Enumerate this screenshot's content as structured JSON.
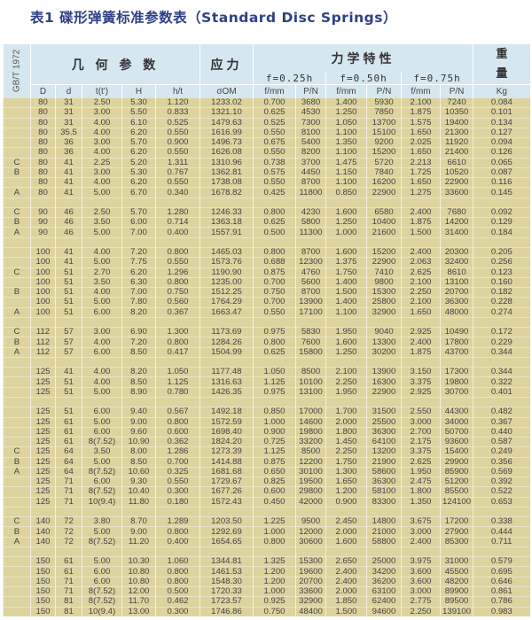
{
  "title": "表1 碟形弹簧标准参数表（Standard Disc Springs）",
  "header": {
    "standard": "GB/T 1972",
    "geometry": "几 何 参 数",
    "stress": "应力",
    "mechanics": "力学特性",
    "weight_top": "重",
    "weight_bottom": "量",
    "f025": "f=0.25h",
    "f050": "f=0.50h",
    "f075": "f=0.75h",
    "columns": [
      "",
      "D",
      "d",
      "t(t')",
      "H",
      "h/t",
      "σOM",
      "f/mm",
      "P/N",
      "f/mm",
      "P/N",
      "f/mm",
      "P/N",
      "Kg"
    ]
  },
  "colors": {
    "header_bg": "#d5e7ef",
    "body_bg": "#ddd39f",
    "title": "#2f3f86"
  },
  "rows": [
    [
      "",
      "80",
      "31",
      "2.50",
      "5.30",
      "1.120",
      "1233.02",
      "0.700",
      "3680",
      "1.400",
      "5930",
      "2.100",
      "7240",
      "0.084"
    ],
    [
      "",
      "80",
      "31",
      "3.00",
      "5.50",
      "0.833",
      "1321.10",
      "0.625",
      "4530",
      "1.250",
      "7850",
      "1.875",
      "10350",
      "0.101"
    ],
    [
      "",
      "80",
      "31",
      "4.00",
      "6.10",
      "0.525",
      "1479.63",
      "0.525",
      "7300",
      "1.050",
      "13700",
      "1.575",
      "19400",
      "0.134"
    ],
    [
      "",
      "80",
      "35.5",
      "4.00",
      "6.20",
      "0.550",
      "1616.99",
      "0.550",
      "8100",
      "1.100",
      "15100",
      "1.650",
      "21300",
      "0.127"
    ],
    [
      "",
      "80",
      "36",
      "3.00",
      "5.70",
      "0.900",
      "1496.73",
      "0.675",
      "5400",
      "1.350",
      "9200",
      "2.025",
      "11920",
      "0.094"
    ],
    [
      "",
      "80",
      "36",
      "4.00",
      "6.20",
      "0.550",
      "1626.08",
      "0.550",
      "8200",
      "1.100",
      "15200",
      "1.650",
      "21400",
      "0.126"
    ],
    [
      "C",
      "80",
      "41",
      "2.25",
      "5.20",
      "1.311",
      "1310.96",
      "0.738",
      "3700",
      "1.475",
      "5720",
      "2.213",
      "6610",
      "0.065"
    ],
    [
      "B",
      "80",
      "41",
      "3.00",
      "5.30",
      "0.767",
      "1362.81",
      "0.575",
      "4450",
      "1.150",
      "7840",
      "1.725",
      "10520",
      "0.087"
    ],
    [
      "",
      "80",
      "41",
      "4.00",
      "6.20",
      "0.550",
      "1738.08",
      "0.550",
      "8700",
      "1.100",
      "16200",
      "1.650",
      "22900",
      "0.116"
    ],
    [
      "A",
      "80",
      "41",
      "5.00",
      "6.70",
      "0.340",
      "1678.82",
      "0.425",
      "11800",
      "0.850",
      "22900",
      "1.275",
      "33600",
      "0.145"
    ],
    [],
    [
      "C",
      "90",
      "46",
      "2.50",
      "5.70",
      "1.280",
      "1246.33",
      "0.800",
      "4230",
      "1.600",
      "6580",
      "2.400",
      "7680",
      "0.092"
    ],
    [
      "B",
      "90",
      "46",
      "3.50",
      "6.00",
      "0.714",
      "1363.18",
      "0.625",
      "5800",
      "1.250",
      "10400",
      "1.875",
      "14200",
      "0.129"
    ],
    [
      "A",
      "90",
      "46",
      "5.00",
      "7.00",
      "0.400",
      "1557.91",
      "0.500",
      "11300",
      "1.000",
      "21600",
      "1.500",
      "31400",
      "0.184"
    ],
    [],
    [
      "",
      "100",
      "41",
      "4.00",
      "7.20",
      "0.800",
      "1465.03",
      "0.800",
      "8700",
      "1.600",
      "15200",
      "2.400",
      "20300",
      "0.205"
    ],
    [
      "",
      "100",
      "41",
      "5.00",
      "7.75",
      "0.550",
      "1573.76",
      "0.688",
      "12300",
      "1.375",
      "22900",
      "2.063",
      "32400",
      "0.256"
    ],
    [
      "C",
      "100",
      "51",
      "2.70",
      "6.20",
      "1.296",
      "1190.90",
      "0.875",
      "4760",
      "1.750",
      "7410",
      "2.625",
      "8610",
      "0.123"
    ],
    [
      "",
      "100",
      "51",
      "3.50",
      "6.30",
      "0.800",
      "1235.00",
      "0.700",
      "5600",
      "1.400",
      "9800",
      "2.100",
      "13100",
      "0.160"
    ],
    [
      "B",
      "100",
      "51",
      "4.00",
      "7.00",
      "0.750",
      "1512.25",
      "0.750",
      "8700",
      "1.500",
      "15300",
      "2.250",
      "20700",
      "0.182"
    ],
    [
      "",
      "100",
      "51",
      "5.00",
      "7.80",
      "0.560",
      "1764.29",
      "0.700",
      "13900",
      "1.400",
      "25800",
      "2.100",
      "36300",
      "0.228"
    ],
    [
      "A",
      "100",
      "51",
      "6.00",
      "8.20",
      "0.367",
      "1663.47",
      "0.550",
      "17100",
      "1.100",
      "32900",
      "1.650",
      "48000",
      "0.274"
    ],
    [],
    [
      "C",
      "112",
      "57",
      "3.00",
      "6.90",
      "1.300",
      "1173.69",
      "0.975",
      "5830",
      "1.950",
      "9040",
      "2.925",
      "10490",
      "0.172"
    ],
    [
      "B",
      "112",
      "57",
      "4.00",
      "7.20",
      "0.800",
      "1284.26",
      "0.800",
      "7600",
      "1.600",
      "13300",
      "2.400",
      "17800",
      "0.229"
    ],
    [
      "A",
      "112",
      "57",
      "6.00",
      "8.50",
      "0.417",
      "1504.99",
      "0.625",
      "15800",
      "1.250",
      "30200",
      "1.875",
      "43700",
      "0.344"
    ],
    [],
    [
      "",
      "125",
      "41",
      "4.00",
      "8.20",
      "1.050",
      "1177.48",
      "1.050",
      "8500",
      "2.100",
      "13900",
      "3.150",
      "17300",
      "0.344"
    ],
    [
      "",
      "125",
      "51",
      "4.00",
      "8.50",
      "1.125",
      "1316.63",
      "1.125",
      "10100",
      "2.250",
      "16300",
      "3.375",
      "19800",
      "0.322"
    ],
    [
      "",
      "125",
      "51",
      "5.00",
      "8.90",
      "0.780",
      "1426.35",
      "0.975",
      "13100",
      "1.950",
      "22900",
      "2.925",
      "30700",
      "0.401"
    ],
    [],
    [
      "",
      "125",
      "51",
      "6.00",
      "9.40",
      "0.567",
      "1492.18",
      "0.850",
      "17000",
      "1.700",
      "31500",
      "2.550",
      "44300",
      "0.482"
    ],
    [
      "",
      "125",
      "61",
      "5.00",
      "9.00",
      "0.800",
      "1572.59",
      "1.000",
      "14600",
      "2.000",
      "25500",
      "3.000",
      "34000",
      "0.367"
    ],
    [
      "",
      "125",
      "61",
      "6.00",
      "9.60",
      "0.600",
      "1698.40",
      "0.900",
      "19800",
      "1.800",
      "36300",
      "2.700",
      "50700",
      "0.440"
    ],
    [
      "",
      "125",
      "61",
      "8(7.52)",
      "10.90",
      "0.362",
      "1824.20",
      "0.725",
      "33200",
      "1.450",
      "64100",
      "2.175",
      "93600",
      "0.587"
    ],
    [
      "C",
      "125",
      "64",
      "3.50",
      "8.00",
      "1.286",
      "1273.39",
      "1.125",
      "8500",
      "2.250",
      "13200",
      "3.375",
      "15400",
      "0.249"
    ],
    [
      "B",
      "125",
      "64",
      "5.00",
      "8.50",
      "0.700",
      "1414.88",
      "0.875",
      "12200",
      "1.750",
      "21900",
      "2.625",
      "29900",
      "0.356"
    ],
    [
      "A",
      "125",
      "64",
      "8(7.52)",
      "10.60",
      "0.325",
      "1681.68",
      "0.650",
      "30100",
      "1.300",
      "58600",
      "1.950",
      "85900",
      "0.569"
    ],
    [
      "",
      "125",
      "71",
      "6.00",
      "9.30",
      "0.550",
      "1729.67",
      "0.825",
      "19500",
      "1.650",
      "36300",
      "2.475",
      "51200",
      "0.392"
    ],
    [
      "",
      "125",
      "71",
      "8(7.52)",
      "10.40",
      "0.300",
      "1677.26",
      "0.600",
      "29800",
      "1.200",
      "58100",
      "1.800",
      "85500",
      "0.522"
    ],
    [
      "",
      "125",
      "71",
      "10(9.4)",
      "11.80",
      "0.180",
      "1572.43",
      "0.450",
      "42000",
      "0.900",
      "83300",
      "1.350",
      "124100",
      "0.653"
    ],
    [],
    [
      "C",
      "140",
      "72",
      "3.80",
      "8.70",
      "1.289",
      "1203.50",
      "1.225",
      "9500",
      "2.450",
      "14800",
      "3.675",
      "17200",
      "0.338"
    ],
    [
      "B",
      "140",
      "72",
      "5.00",
      "9.00",
      "0.800",
      "1292.69",
      "1.000",
      "12000",
      "2.000",
      "21000",
      "3.000",
      "27900",
      "0.444"
    ],
    [
      "A",
      "140",
      "72",
      "8(7.52)",
      "11.20",
      "0.400",
      "1654.65",
      "0.800",
      "30600",
      "1.600",
      "58800",
      "2.400",
      "85300",
      "0.711"
    ],
    [],
    [
      "",
      "150",
      "61",
      "5.00",
      "10.30",
      "1.060",
      "1344.81",
      "1.325",
      "15300",
      "2.650",
      "25000",
      "3.975",
      "31000",
      "0.579"
    ],
    [
      "",
      "150",
      "61",
      "6.00",
      "10.80",
      "0.800",
      "1461.53",
      "1.200",
      "19600",
      "2.400",
      "34200",
      "3.600",
      "45500",
      "0.695"
    ],
    [
      "",
      "150",
      "71",
      "6.00",
      "10.80",
      "0.800",
      "1548.30",
      "1.200",
      "20700",
      "2.400",
      "36200",
      "3.600",
      "48200",
      "0.646"
    ],
    [
      "",
      "150",
      "71",
      "8(7.52)",
      "12.00",
      "0.500",
      "1720.33",
      "1.000",
      "33600",
      "2.000",
      "63100",
      "3.000",
      "89900",
      "0.861"
    ],
    [
      "",
      "150",
      "81",
      "8(7.52)",
      "11.70",
      "0.462",
      "1723.57",
      "0.925",
      "32900",
      "1.850",
      "62400",
      "2.775",
      "89500",
      "0.786"
    ],
    [
      "",
      "150",
      "81",
      "10(9.4)",
      "13.00",
      "0.300",
      "1746.86",
      "0.750",
      "48400",
      "1.500",
      "94600",
      "2.250",
      "139100",
      "0.983"
    ]
  ]
}
